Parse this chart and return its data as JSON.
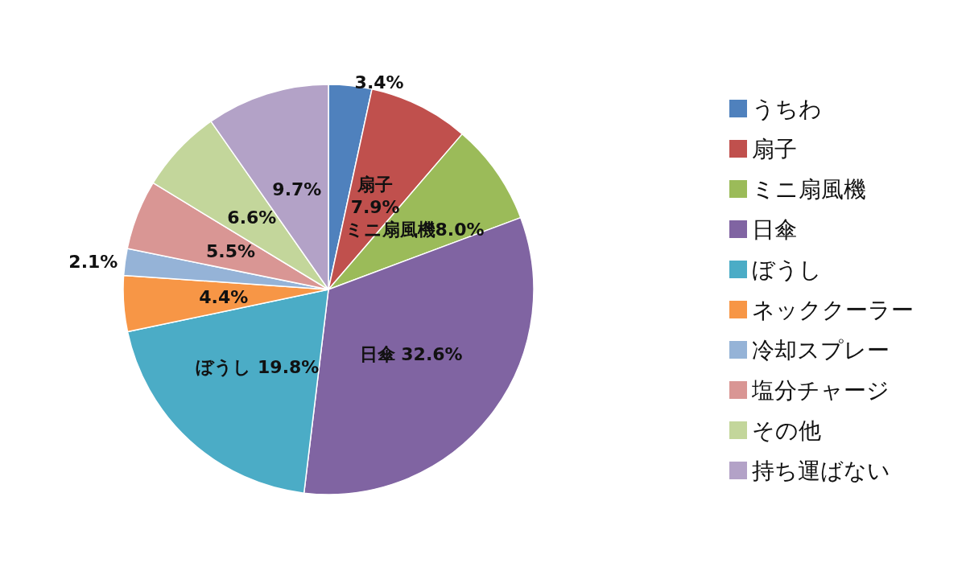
{
  "chart_data": {
    "type": "pie",
    "categories": [
      "うちわ",
      "扇子",
      "ミニ扇風機",
      "日傘",
      "ぼうし",
      "ネッククーラー",
      "冷却スプレー",
      "塩分チャージ",
      "その他",
      "持ち運ばない"
    ],
    "values": [
      3.4,
      7.9,
      8.0,
      32.6,
      19.8,
      4.4,
      2.1,
      5.5,
      6.6,
      9.7
    ],
    "colors": [
      "#4f81bd",
      "#c0504d",
      "#9bbb59",
      "#8064a2",
      "#4bacc6",
      "#f79646",
      "#95b3d7",
      "#d99694",
      "#c3d69b",
      "#b3a2c7"
    ],
    "value_labels": [
      "3.4%",
      "扇子\n7.9%",
      "ミニ扇風機8.0%",
      "日傘 32.6%",
      "ぼうし 19.8%",
      "4.4%",
      "2.1%",
      "5.5%",
      "6.6%",
      "9.7%"
    ],
    "legend": "right"
  }
}
